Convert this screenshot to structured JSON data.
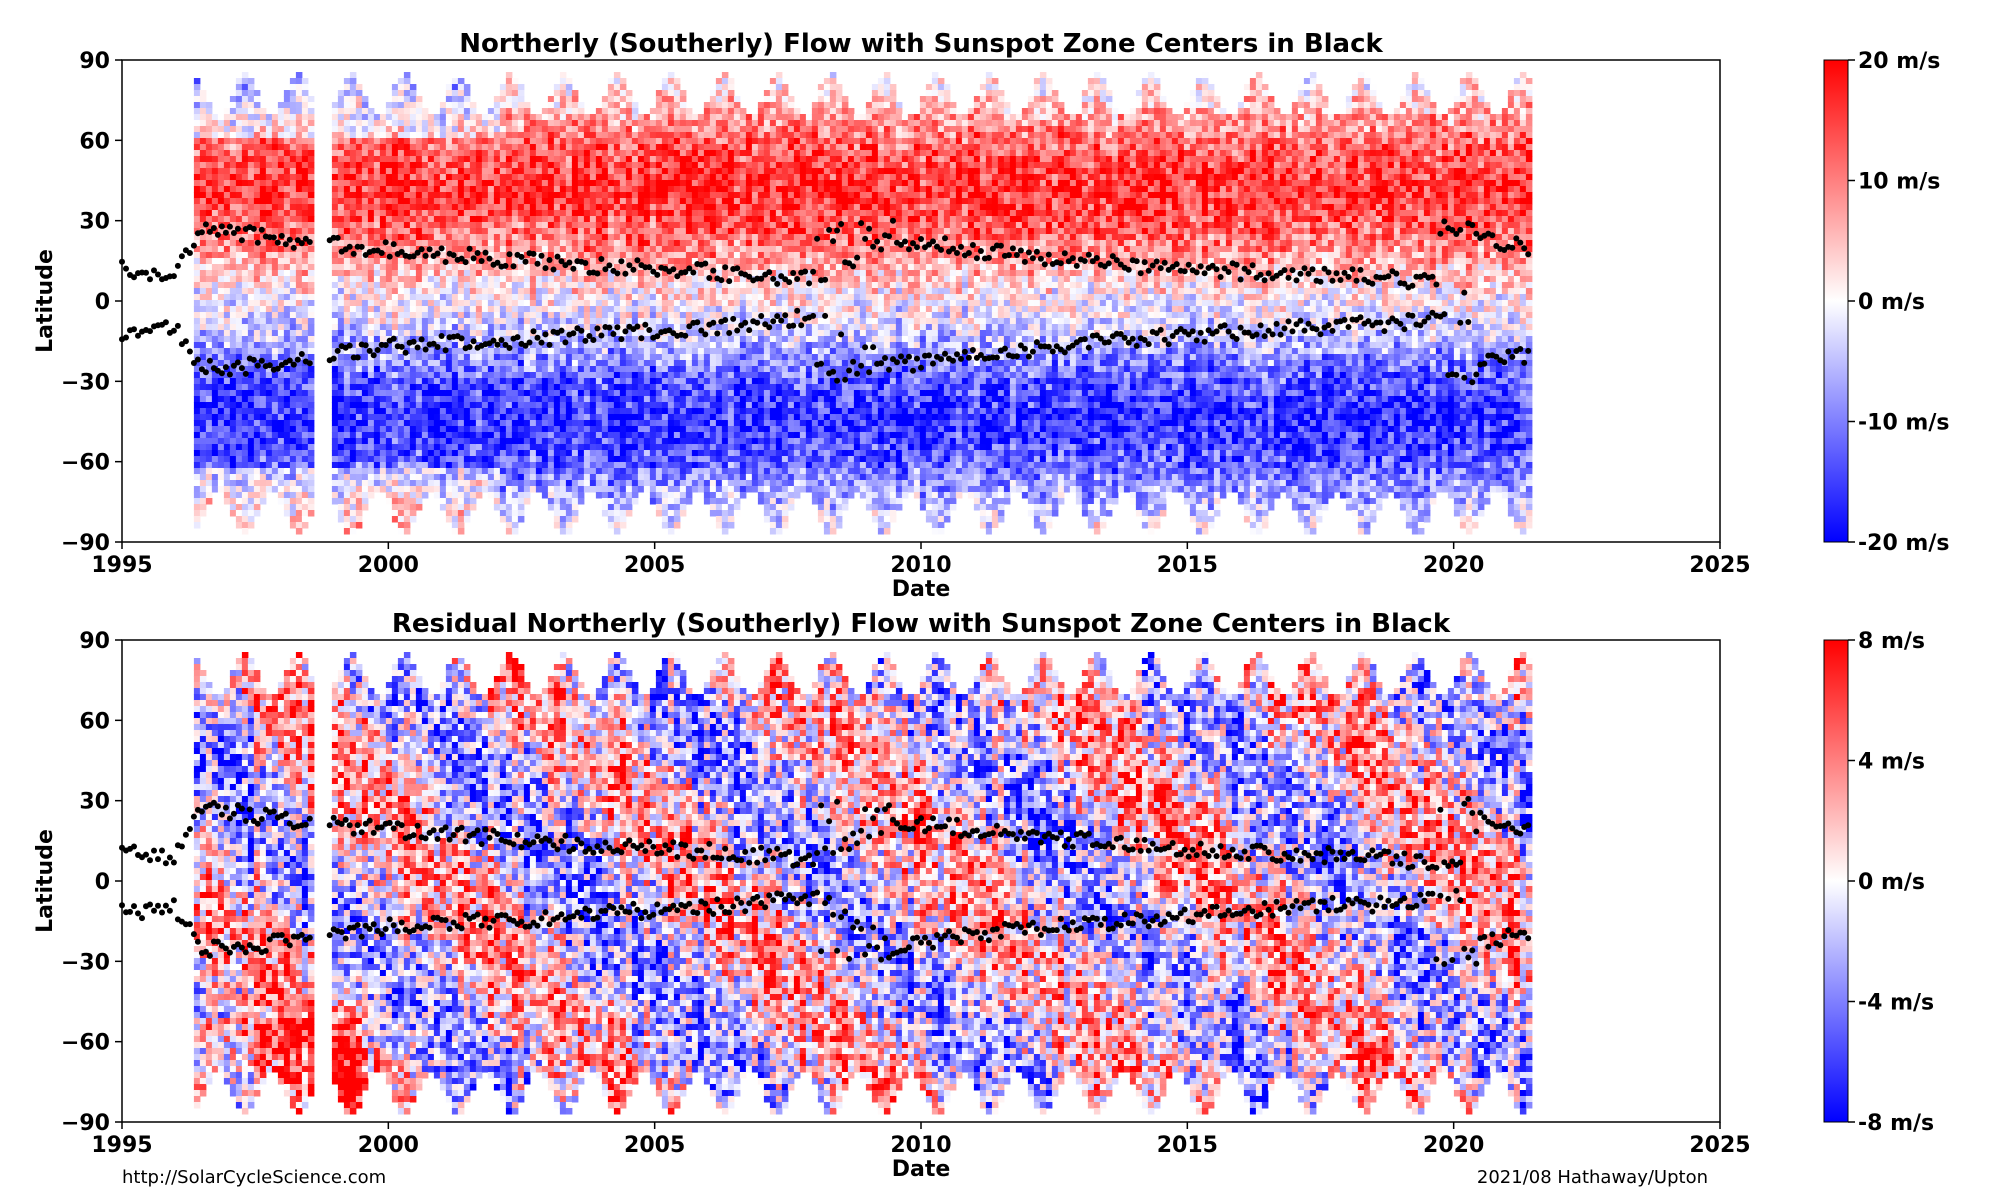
{
  "chart_data": [
    {
      "type": "heatmap",
      "title": "Northerly (Southerly) Flow with Sunspot Zone Centers in Black",
      "xlabel": "Date",
      "ylabel": "Latitude",
      "xlim": [
        1995,
        2025
      ],
      "ylim": [
        -90,
        90
      ],
      "x_ticks": [
        "1995",
        "2000",
        "2005",
        "2010",
        "2015",
        "2020",
        "2025"
      ],
      "y_ticks": [
        "−90",
        "−60",
        "−30",
        "0",
        "30",
        "60",
        "90"
      ],
      "data_x_range": [
        1996.35,
        2021.45
      ],
      "data_gap": [
        1998.55,
        1998.9
      ],
      "colorbar": {
        "colors": [
          "#0000ff",
          "#ffffff",
          "#ff0000"
        ],
        "range": [
          -20,
          20
        ],
        "tick_values": [
          20,
          10,
          0,
          -10,
          -20
        ],
        "tick_labels": [
          "20 m/s",
          "10 m/s",
          "0 m/s",
          "-10 m/s",
          "-20 m/s"
        ]
      },
      "field_description": "Positive (northward, red) in the northern hemisphere and negative (southward, blue) in the southern hemisphere, peaking near ±40° and weakening toward the poles; counter-cells near the poles early in the record",
      "sunspot_zone_centers": {
        "north": [
          [
            1995.0,
            12
          ],
          [
            1996.0,
            9
          ],
          [
            1996.5,
            28
          ],
          [
            1997.0,
            26
          ],
          [
            1998.0,
            23
          ],
          [
            2000.0,
            19
          ],
          [
            2002.0,
            16
          ],
          [
            2004.0,
            13
          ],
          [
            2006.0,
            11
          ],
          [
            2008.0,
            8
          ],
          [
            2009.5,
            23
          ],
          [
            2011.0,
            19
          ],
          [
            2013.0,
            15
          ],
          [
            2015.0,
            12
          ],
          [
            2017.0,
            10
          ],
          [
            2019.0,
            8
          ],
          [
            2020.3,
            5
          ],
          [
            2020.5,
            23
          ],
          [
            2021.4,
            20
          ]
        ],
        "south": [
          [
            1995.0,
            -12
          ],
          [
            1996.0,
            -10
          ],
          [
            1996.5,
            -25
          ],
          [
            1997.0,
            -25
          ],
          [
            1998.0,
            -23
          ],
          [
            2000.0,
            -17
          ],
          [
            2002.0,
            -15
          ],
          [
            2004.0,
            -12
          ],
          [
            2006.0,
            -10
          ],
          [
            2008.0,
            -6
          ],
          [
            2009.5,
            -24
          ],
          [
            2011.0,
            -20
          ],
          [
            2013.0,
            -16
          ],
          [
            2015.0,
            -13
          ],
          [
            2017.0,
            -10
          ],
          [
            2019.0,
            -8
          ],
          [
            2020.3,
            -5
          ],
          [
            2020.5,
            -22
          ],
          [
            2021.4,
            -20
          ]
        ]
      }
    },
    {
      "type": "heatmap",
      "title": "Residual Northerly (Southerly) Flow with Sunspot Zone Centers in Black",
      "xlabel": "Date",
      "ylabel": "Latitude",
      "xlim": [
        1995,
        2025
      ],
      "ylim": [
        -90,
        90
      ],
      "x_ticks": [
        "1995",
        "2000",
        "2005",
        "2010",
        "2015",
        "2020",
        "2025"
      ],
      "y_ticks": [
        "−90",
        "−60",
        "−30",
        "0",
        "30",
        "60",
        "90"
      ],
      "data_x_range": [
        1996.35,
        2021.45
      ],
      "data_gap": [
        1998.55,
        1998.9
      ],
      "colorbar": {
        "colors": [
          "#0000ff",
          "#ffffff",
          "#ff0000"
        ],
        "range": [
          -8,
          8
        ],
        "tick_values": [
          8,
          4,
          0,
          -4,
          -8
        ],
        "tick_labels": [
          "8 m/s",
          "4 m/s",
          "0 m/s",
          "-4 m/s",
          "-8 m/s"
        ]
      },
      "field_description": "Residual flow after removing the mean profile: mixed red and blue bands that drift toward the equator alongside the sunspot zones; strong red near -70° in 1996–1999",
      "sunspot_zone_centers": {
        "north": [
          [
            1995.0,
            12
          ],
          [
            1996.0,
            9
          ],
          [
            1996.5,
            28
          ],
          [
            1997.0,
            26
          ],
          [
            1998.0,
            23
          ],
          [
            2000.0,
            19
          ],
          [
            2002.0,
            16
          ],
          [
            2004.0,
            13
          ],
          [
            2006.0,
            11
          ],
          [
            2008.0,
            8
          ],
          [
            2009.5,
            23
          ],
          [
            2011.0,
            19
          ],
          [
            2013.0,
            15
          ],
          [
            2015.0,
            12
          ],
          [
            2017.0,
            10
          ],
          [
            2019.0,
            8
          ],
          [
            2020.3,
            5
          ],
          [
            2020.5,
            23
          ],
          [
            2021.4,
            20
          ]
        ],
        "south": [
          [
            1995.0,
            -12
          ],
          [
            1996.0,
            -10
          ],
          [
            1996.5,
            -25
          ],
          [
            1997.0,
            -25
          ],
          [
            1998.0,
            -23
          ],
          [
            2000.0,
            -17
          ],
          [
            2002.0,
            -15
          ],
          [
            2004.0,
            -12
          ],
          [
            2006.0,
            -10
          ],
          [
            2008.0,
            -6
          ],
          [
            2009.5,
            -24
          ],
          [
            2011.0,
            -20
          ],
          [
            2013.0,
            -16
          ],
          [
            2015.0,
            -13
          ],
          [
            2017.0,
            -10
          ],
          [
            2019.0,
            -8
          ],
          [
            2020.3,
            -5
          ],
          [
            2020.5,
            -22
          ],
          [
            2021.4,
            -20
          ]
        ]
      }
    }
  ],
  "footer": {
    "left": "http://SolarCycleScience.com",
    "right": "2021/08 Hathaway/Upton"
  }
}
